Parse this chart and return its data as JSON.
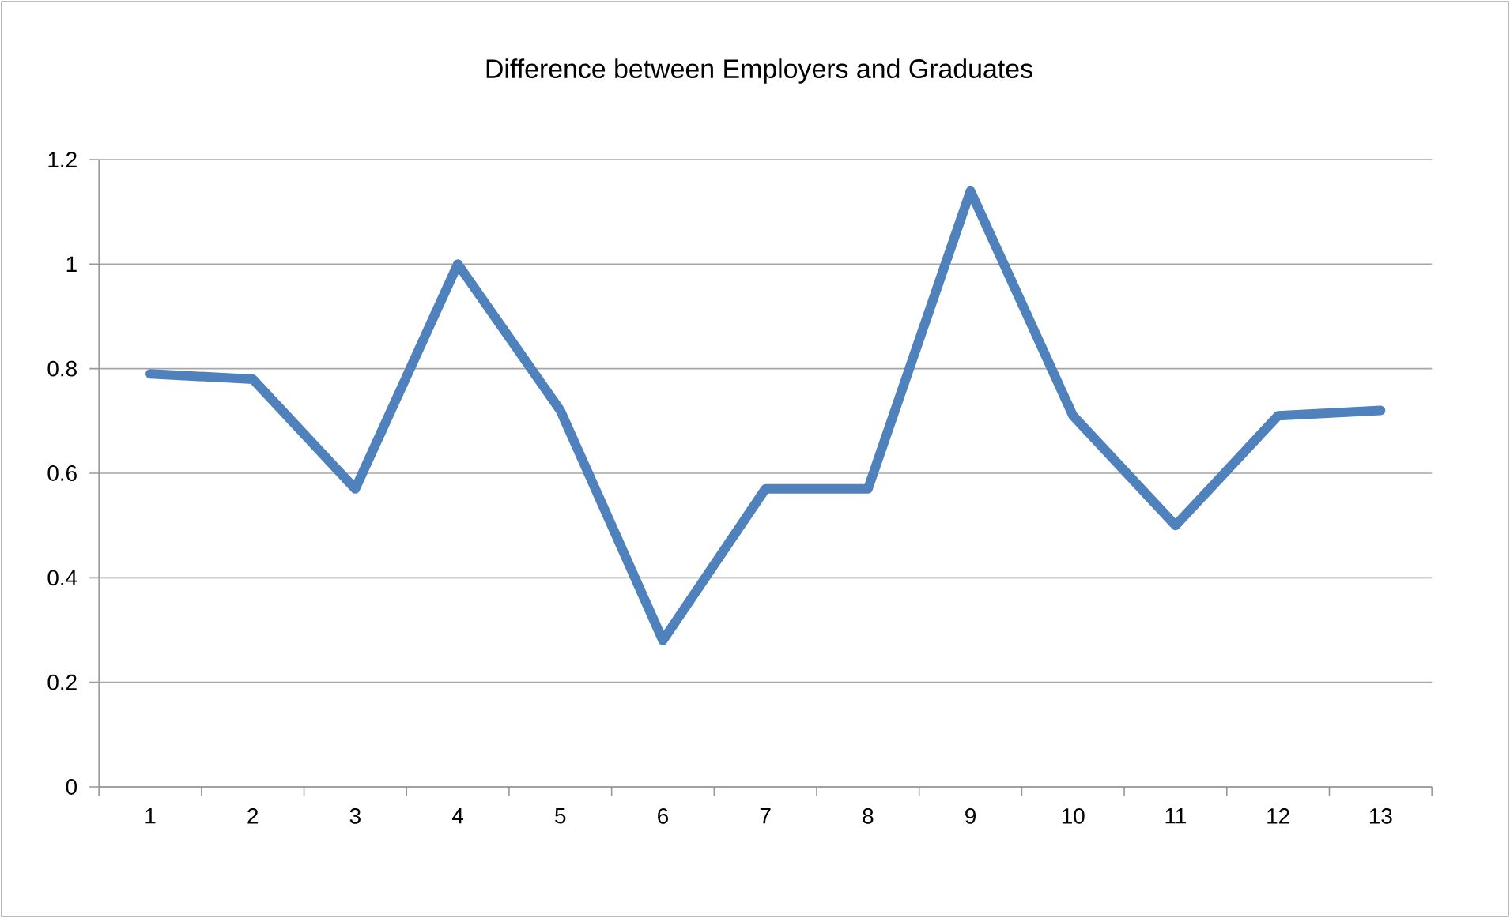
{
  "chart_data": {
    "type": "line",
    "title": "Difference between Employers and Graduates",
    "categories": [
      "1",
      "2",
      "3",
      "4",
      "5",
      "6",
      "7",
      "8",
      "9",
      "10",
      "11",
      "12",
      "13"
    ],
    "values": [
      0.79,
      0.78,
      0.57,
      1.0,
      0.72,
      0.28,
      0.57,
      0.57,
      1.14,
      0.71,
      0.5,
      0.71,
      0.72
    ],
    "color": "#4f81bd",
    "ylim": [
      0,
      1.2
    ],
    "yticks": [
      0,
      0.2,
      0.4,
      0.6,
      0.8,
      1,
      1.2
    ],
    "grid": "y"
  }
}
